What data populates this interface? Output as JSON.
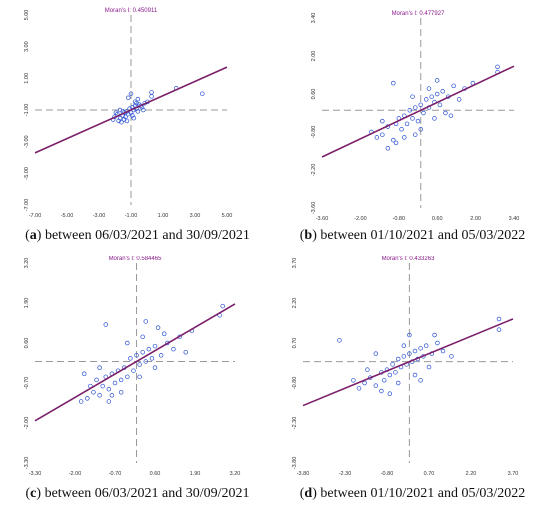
{
  "colors": {
    "regression_line": "#7b1f6a",
    "points": "#2a52d6",
    "dashed_axes": "#999999",
    "tick_text": "#333333",
    "title_text": "#8a1a8a"
  },
  "chart_data": [
    {
      "id": "a",
      "type": "scatter",
      "title": "Moran's I: 0.450911",
      "caption_letter": "a",
      "caption_text": " between 06/03/2021 and 30/09/2021",
      "x_ticks": [
        "-7.00",
        "-5.00",
        "-3.00",
        "-1.00",
        "1.00",
        "3.00",
        "5.00"
      ],
      "y_ticks": [
        "5.00",
        "3.00",
        "1.00",
        "-1.00",
        "-3.00",
        "-5.00",
        "-7.00"
      ],
      "xlim": [
        -7,
        7
      ],
      "ylim": [
        -7,
        7
      ],
      "regression": {
        "slope": 0.450911,
        "intercept": 0
      },
      "grid": false,
      "points": [
        [
          -1.2,
          -0.5
        ],
        [
          -1.0,
          -0.3
        ],
        [
          -0.8,
          -0.6
        ],
        [
          -0.6,
          -0.4
        ],
        [
          -0.5,
          -0.2
        ],
        [
          -0.4,
          -0.5
        ],
        [
          -0.3,
          -0.1
        ],
        [
          -0.2,
          -0.3
        ],
        [
          -0.1,
          0.1
        ],
        [
          0.0,
          -0.2
        ],
        [
          0.1,
          0.2
        ],
        [
          0.2,
          0.0
        ],
        [
          0.3,
          0.3
        ],
        [
          0.4,
          0.1
        ],
        [
          0.5,
          -0.1
        ],
        [
          0.6,
          0.4
        ],
        [
          0.8,
          0.2
        ],
        [
          1.0,
          0.5
        ],
        [
          -0.9,
          -0.8
        ],
        [
          -0.7,
          -0.9
        ],
        [
          -1.1,
          -0.2
        ],
        [
          -0.5,
          -0.7
        ],
        [
          0.1,
          -0.4
        ],
        [
          0.3,
          0.6
        ],
        [
          0.5,
          0.8
        ],
        [
          0.7,
          0.3
        ],
        [
          1.2,
          0.6
        ],
        [
          1.5,
          1.3
        ],
        [
          1.5,
          1.0
        ],
        [
          -0.2,
          0.9
        ],
        [
          0.0,
          1.2
        ],
        [
          3.3,
          1.6
        ],
        [
          5.2,
          1.2
        ],
        [
          -0.3,
          -0.8
        ],
        [
          -0.6,
          -0.1
        ],
        [
          0.9,
          0.0
        ],
        [
          -1.3,
          -0.7
        ],
        [
          0.2,
          -0.6
        ],
        [
          -0.8,
          0.0
        ],
        [
          0.4,
          0.5
        ]
      ]
    },
    {
      "id": "b",
      "type": "scatter",
      "title": "Moran's I: 0.477927",
      "caption_letter": "b",
      "caption_text": " between 01/10/2021 and 05/03/2022",
      "x_ticks": [
        "-3.60",
        "-2.00",
        "-0.80",
        "0.60",
        "2.00",
        "3.40"
      ],
      "y_ticks": [
        "3.40",
        "2.00",
        "0.60",
        "-0.80",
        "-2.20",
        "-3.60"
      ],
      "xlim": [
        -3.6,
        3.4
      ],
      "ylim": [
        -3.6,
        3.4
      ],
      "regression": {
        "slope": 0.477927,
        "intercept": 0
      },
      "grid": false,
      "points": [
        [
          -1.6,
          -1.0
        ],
        [
          -1.4,
          -0.9
        ],
        [
          -1.2,
          -0.6
        ],
        [
          -1.0,
          -1.1
        ],
        [
          -0.9,
          -0.5
        ],
        [
          -0.8,
          -0.3
        ],
        [
          -0.7,
          -0.7
        ],
        [
          -0.6,
          -0.2
        ],
        [
          -0.5,
          -0.5
        ],
        [
          -0.4,
          0.0
        ],
        [
          -0.3,
          -0.3
        ],
        [
          -0.2,
          0.1
        ],
        [
          -0.1,
          -0.4
        ],
        [
          0.0,
          0.2
        ],
        [
          0.1,
          -0.1
        ],
        [
          0.2,
          0.4
        ],
        [
          0.3,
          0.1
        ],
        [
          0.4,
          0.5
        ],
        [
          0.5,
          0.3
        ],
        [
          0.6,
          0.6
        ],
        [
          0.7,
          0.2
        ],
        [
          0.8,
          0.7
        ],
        [
          1.0,
          0.5
        ],
        [
          1.2,
          0.9
        ],
        [
          1.4,
          0.4
        ],
        [
          1.6,
          0.8
        ],
        [
          -1.0,
          1.0
        ],
        [
          1.9,
          1.0
        ],
        [
          2.8,
          1.4
        ],
        [
          2.8,
          1.6
        ],
        [
          -1.4,
          -0.4
        ],
        [
          -0.6,
          -1.0
        ],
        [
          0.0,
          -0.7
        ],
        [
          0.5,
          -0.3
        ],
        [
          0.9,
          -0.1
        ],
        [
          -1.8,
          -0.8
        ],
        [
          -0.3,
          0.5
        ],
        [
          0.3,
          0.8
        ],
        [
          1.1,
          -0.2
        ],
        [
          -0.9,
          -1.2
        ],
        [
          -0.2,
          -0.9
        ],
        [
          0.6,
          1.1
        ],
        [
          -1.2,
          -1.4
        ]
      ]
    },
    {
      "id": "c",
      "type": "scatter",
      "title": "Moran's I: 0.584465",
      "caption_letter": "c",
      "caption_text": " between 06/03/2021 and 30/09/2021",
      "x_ticks": [
        "-3.30",
        "-2.00",
        "-0.70",
        "0.60",
        "1.90",
        "3.20"
      ],
      "y_ticks": [
        "3.20",
        "1.90",
        "0.60",
        "-0.70",
        "-2.00",
        "-3.30"
      ],
      "xlim": [
        -3.3,
        3.2
      ],
      "ylim": [
        -3.3,
        3.2
      ],
      "regression": {
        "slope": 0.584465,
        "intercept": 0
      },
      "grid": false,
      "points": [
        [
          -1.8,
          -1.3
        ],
        [
          -1.6,
          -1.2
        ],
        [
          -1.4,
          -1.0
        ],
        [
          -1.3,
          -0.6
        ],
        [
          -1.2,
          -1.1
        ],
        [
          -1.1,
          -0.8
        ],
        [
          -1.0,
          -0.5
        ],
        [
          -0.9,
          -0.9
        ],
        [
          -0.8,
          -0.4
        ],
        [
          -0.7,
          -0.7
        ],
        [
          -0.6,
          -0.3
        ],
        [
          -0.5,
          -0.6
        ],
        [
          -0.4,
          -0.2
        ],
        [
          -0.3,
          -0.5
        ],
        [
          -0.2,
          0.1
        ],
        [
          -0.1,
          -0.3
        ],
        [
          0.0,
          0.2
        ],
        [
          0.1,
          -0.1
        ],
        [
          0.2,
          0.3
        ],
        [
          0.3,
          0.0
        ],
        [
          0.4,
          0.4
        ],
        [
          0.5,
          0.1
        ],
        [
          0.6,
          0.5
        ],
        [
          0.8,
          0.2
        ],
        [
          1.0,
          0.6
        ],
        [
          1.2,
          0.4
        ],
        [
          1.4,
          0.8
        ],
        [
          1.6,
          0.3
        ],
        [
          -1.0,
          1.2
        ],
        [
          0.3,
          1.3
        ],
        [
          0.7,
          1.1
        ],
        [
          1.8,
          1.0
        ],
        [
          2.7,
          1.5
        ],
        [
          2.8,
          1.8
        ],
        [
          -1.2,
          -0.2
        ],
        [
          -0.9,
          -1.3
        ],
        [
          -0.5,
          -1.0
        ],
        [
          0.1,
          -0.5
        ],
        [
          0.6,
          -0.2
        ],
        [
          -1.5,
          -0.8
        ],
        [
          -0.3,
          0.6
        ],
        [
          0.9,
          0.9
        ],
        [
          -1.7,
          -0.4
        ],
        [
          -0.8,
          -1.1
        ],
        [
          0.2,
          0.8
        ]
      ]
    },
    {
      "id": "d",
      "type": "scatter",
      "title": "Moran's I: 0.433263",
      "caption_letter": "d",
      "caption_text": " between 01/10/2021 and 05/03/2022",
      "x_ticks": [
        "-3.80",
        "-2.30",
        "-0.80",
        "0.70",
        "2.20",
        "3.70"
      ],
      "y_ticks": [
        "3.70",
        "2.20",
        "0.70",
        "-0.80",
        "-2.30",
        "-3.80"
      ],
      "xlim": [
        -3.8,
        3.7
      ],
      "ylim": [
        -3.8,
        3.7
      ],
      "regression": {
        "slope": 0.433263,
        "intercept": 0
      },
      "grid": false,
      "points": [
        [
          -1.8,
          -1.0
        ],
        [
          -1.6,
          -0.8
        ],
        [
          -1.4,
          -0.6
        ],
        [
          -1.2,
          -0.9
        ],
        [
          -1.0,
          -0.4
        ],
        [
          -0.9,
          -0.7
        ],
        [
          -0.8,
          -0.3
        ],
        [
          -0.7,
          -0.5
        ],
        [
          -0.6,
          -0.1
        ],
        [
          -0.5,
          -0.4
        ],
        [
          -0.4,
          0.1
        ],
        [
          -0.3,
          -0.2
        ],
        [
          -0.2,
          0.2
        ],
        [
          -0.1,
          -0.1
        ],
        [
          0.0,
          0.3
        ],
        [
          0.1,
          0.0
        ],
        [
          0.2,
          0.4
        ],
        [
          0.3,
          0.1
        ],
        [
          0.4,
          0.5
        ],
        [
          0.5,
          0.2
        ],
        [
          0.6,
          0.6
        ],
        [
          0.8,
          0.3
        ],
        [
          1.0,
          0.7
        ],
        [
          1.2,
          0.4
        ],
        [
          1.5,
          0.2
        ],
        [
          -2.5,
          0.8
        ],
        [
          -1.2,
          0.3
        ],
        [
          0.0,
          1.0
        ],
        [
          3.2,
          1.6
        ],
        [
          3.2,
          1.2
        ],
        [
          -1.0,
          -1.1
        ],
        [
          -0.4,
          -0.8
        ],
        [
          0.2,
          -0.5
        ],
        [
          0.7,
          -0.2
        ],
        [
          -1.5,
          -0.3
        ],
        [
          -0.2,
          0.6
        ],
        [
          0.9,
          1.0
        ],
        [
          -0.7,
          -1.2
        ],
        [
          0.4,
          -0.7
        ],
        [
          -2.0,
          -0.7
        ]
      ]
    }
  ]
}
